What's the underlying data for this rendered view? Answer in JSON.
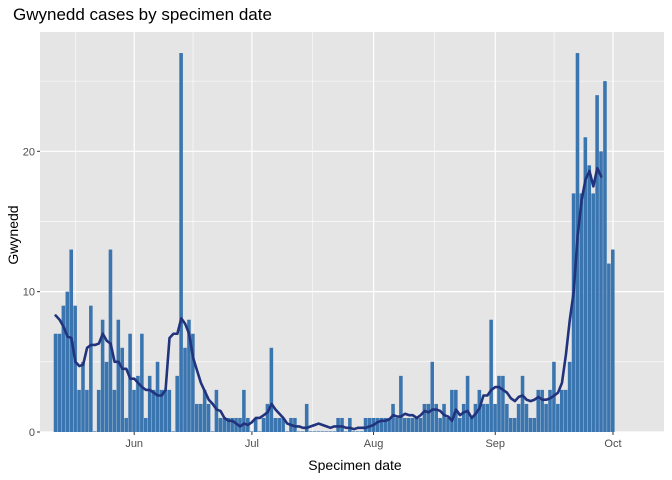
{
  "chart_data": {
    "type": "bar",
    "title": "Gwynedd cases by specimen date",
    "xlabel": "Specimen date",
    "ylabel": "Gwynedd",
    "x_start": "2020-05-12",
    "x_ticks": [
      {
        "label": "Jun",
        "date": "2020-06-01"
      },
      {
        "label": "Jul",
        "date": "2020-07-01"
      },
      {
        "label": "Aug",
        "date": "2020-08-01"
      },
      {
        "label": "Sep",
        "date": "2020-09-01"
      },
      {
        "label": "Oct",
        "date": "2020-10-01"
      }
    ],
    "y_ticks": [
      0,
      10,
      20
    ],
    "ylim": [
      0,
      28.5
    ],
    "xlim": [
      "2020-05-08",
      "2020-10-14"
    ],
    "grid": true,
    "legend": "none",
    "colors": {
      "bar": "#3a75b0",
      "line": "#22337d",
      "panel": "#e5e5e5",
      "grid": "#ffffff"
    },
    "values": [
      7,
      7,
      9,
      10,
      13,
      9,
      3,
      5,
      3,
      9,
      0,
      3,
      8,
      5,
      13,
      3,
      8,
      6,
      1,
      7,
      3,
      4,
      7,
      1,
      4,
      3,
      5,
      3,
      3,
      3,
      0,
      4,
      27,
      6,
      8,
      7,
      2,
      2,
      3,
      2,
      0,
      3,
      1,
      1,
      1,
      1,
      1,
      1,
      3,
      1,
      0,
      1,
      0,
      1,
      2,
      6,
      1,
      1,
      1,
      0,
      1,
      1,
      0,
      0,
      2,
      0,
      0,
      0,
      0,
      0,
      0,
      0,
      1,
      1,
      0,
      1,
      0,
      0,
      0,
      1,
      1,
      1,
      1,
      1,
      1,
      1,
      2,
      1,
      4,
      1,
      1,
      1,
      1,
      1,
      2,
      2,
      5,
      2,
      1,
      2,
      1,
      3,
      3,
      1,
      2,
      4,
      1,
      2,
      3,
      2,
      2,
      8,
      2,
      4,
      4,
      2,
      1,
      1,
      2,
      4,
      2,
      1,
      1,
      3,
      3,
      2,
      3,
      5,
      2,
      3,
      3,
      5,
      17,
      27,
      17,
      21,
      19,
      17,
      24,
      20,
      25,
      12,
      13
    ],
    "series": [
      {
        "values": [
          8.3,
          8.0,
          7.5,
          6.8,
          6.7,
          5.0,
          4.7,
          4.8,
          6.0,
          6.2,
          6.2,
          6.3,
          7.0,
          6.5,
          6.3,
          5.0,
          5.0,
          4.5,
          4.5,
          3.8,
          3.8,
          3.5,
          3.2,
          3.0,
          3.0,
          2.8,
          2.6,
          2.6,
          3.0,
          6.7,
          7.0,
          7.0,
          8.1,
          7.7,
          7.0,
          5.3,
          4.4,
          3.5,
          2.9,
          2.3,
          2.0,
          1.6,
          1.5,
          1.0,
          0.8,
          0.8,
          0.6,
          0.4,
          0.6,
          0.5,
          0.7,
          1.0,
          1.0,
          1.2,
          1.4,
          2.0,
          1.6,
          1.3,
          1.0,
          0.6,
          0.5,
          0.4,
          0.4,
          0.3,
          0.3,
          0.4,
          0.5,
          0.6,
          0.5,
          0.4,
          0.3,
          0.4,
          0.4,
          0.4,
          0.3,
          0.3,
          0.2,
          0.3,
          0.3,
          0.3,
          0.4,
          0.5,
          0.7,
          0.8,
          0.8,
          0.9,
          1.2,
          1.1,
          1.1,
          1.3,
          1.2,
          1.2,
          1.0,
          1.2,
          1.5,
          1.4,
          1.6,
          1.6,
          1.5,
          1.2,
          1.1,
          0.8,
          1.6,
          1.2,
          1.4,
          1.5,
          1.0,
          1.3,
          1.7,
          2.6,
          2.6,
          3.0,
          3.2,
          3.2,
          3.0,
          2.8,
          2.4,
          2.2,
          2.5,
          2.6,
          2.3,
          2.2,
          2.3,
          2.5,
          2.3,
          2.3,
          2.4,
          2.6,
          2.8,
          3.5,
          5.5,
          8.0,
          10.0,
          14.0,
          16.5,
          18.0,
          18.6,
          17.5,
          18.8,
          18.2
        ]
      }
    ]
  }
}
